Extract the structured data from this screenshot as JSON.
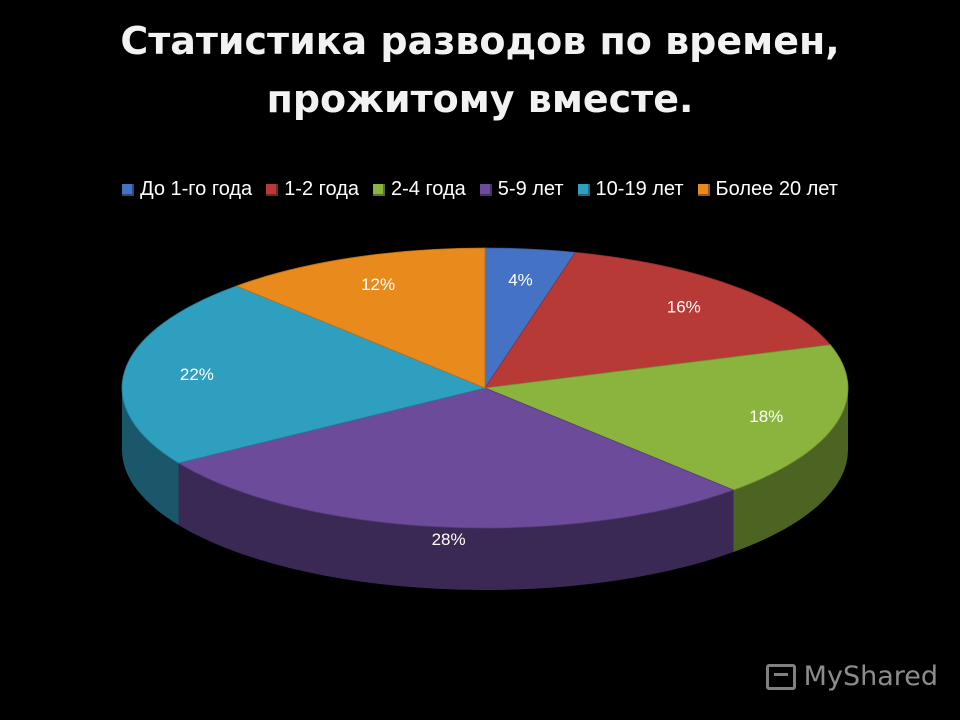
{
  "chart_data": {
    "type": "pie",
    "title_lines": [
      "Статистика разводов по времен,",
      "прожитому вместе."
    ],
    "categories": [
      "До 1-го года",
      "1-2 года",
      "2-4 года",
      "5-9 лет",
      "10-19 лет",
      "Более 20 лет"
    ],
    "values": [
      4,
      16,
      18,
      28,
      22,
      12
    ],
    "labels": [
      "4%",
      "16%",
      "18%",
      "28%",
      "22%",
      "12%"
    ],
    "colors": [
      "#4472c4",
      "#b83a36",
      "#8ab43e",
      "#6c4b9a",
      "#2f9fc0",
      "#e98a1c"
    ],
    "legend_position": "top",
    "style": "3d"
  },
  "watermark": {
    "text": "MyShared"
  }
}
